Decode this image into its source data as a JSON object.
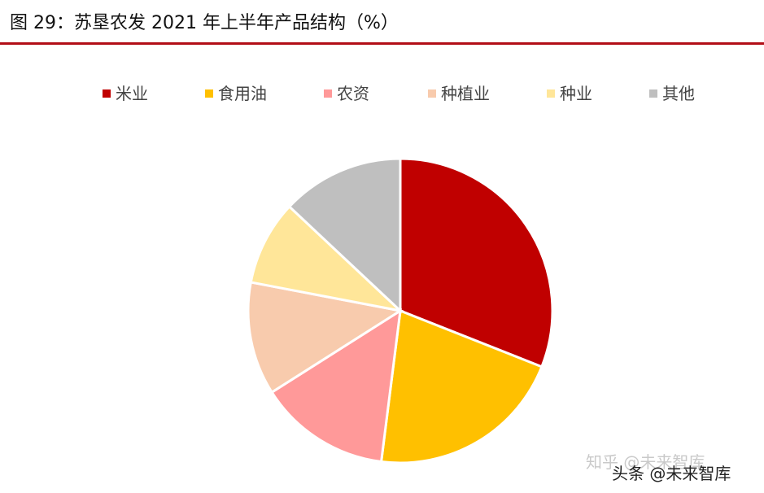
{
  "figure": {
    "title": "图 29：苏垦农发 2021 年上半年产品结构（%）"
  },
  "chart_data": {
    "type": "pie",
    "title": "",
    "legend_position": "top",
    "categories": [
      "米业",
      "食用油",
      "农资",
      "种植业",
      "种业",
      "其他"
    ],
    "values": [
      31,
      21,
      14,
      12,
      9,
      13
    ],
    "colors": [
      "#c00000",
      "#ffc000",
      "#ff9999",
      "#f8cbad",
      "#ffe699",
      "#bfbfbf"
    ],
    "start_angle_deg": 0,
    "direction": "clockwise"
  },
  "watermark": {
    "text_back": "知乎 @未来智库",
    "text_front": "头条 @未来智库"
  }
}
